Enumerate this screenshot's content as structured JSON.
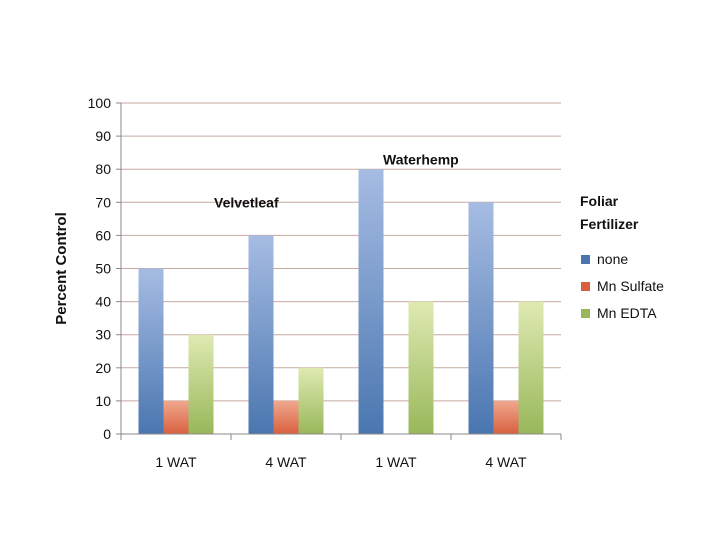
{
  "chart_data": {
    "type": "bar",
    "categories": [
      "1 WAT",
      "4 WAT",
      "1 WAT",
      "4 WAT"
    ],
    "ylabel": "Percent Control",
    "ylim": [
      0,
      100
    ],
    "yticks": [
      0,
      10,
      20,
      30,
      40,
      50,
      60,
      70,
      80,
      90,
      100
    ],
    "grid": true,
    "legend": {
      "title_lines": [
        "Foliar",
        "Fertilizer"
      ],
      "placement": "right"
    },
    "series": [
      {
        "name": "none",
        "values": [
          50,
          60,
          80,
          70
        ],
        "color_top": "#a6bce3",
        "color_bottom": "#4a76b0"
      },
      {
        "name": "Mn Sulfate",
        "values": [
          10,
          10,
          0,
          10
        ],
        "color_top": "#f0a88e",
        "color_bottom": "#d8603f"
      },
      {
        "name": "Mn EDTA",
        "values": [
          30,
          20,
          40,
          40
        ],
        "color_top": "#dfeab2",
        "color_bottom": "#98b75a"
      }
    ],
    "annotations": [
      {
        "text": "Velvetleaf",
        "near_category": 1,
        "at_value": 70
      },
      {
        "text": "Waterhemp",
        "near_category": 2,
        "at_value": 83
      }
    ]
  }
}
